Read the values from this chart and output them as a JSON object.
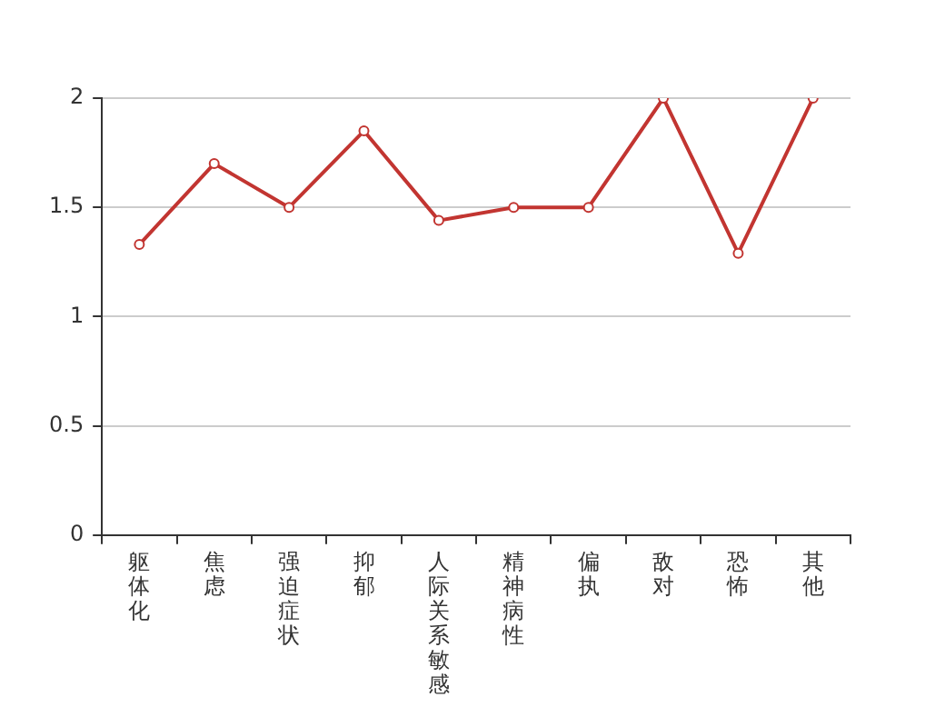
{
  "chart_data": {
    "type": "line",
    "categories": [
      "躯体化",
      "焦虑",
      "强迫症状",
      "抑郁",
      "人际关系敏感",
      "精神病性",
      "偏执",
      "敌对",
      "恐怖",
      "其他"
    ],
    "series": [
      {
        "color": "#c23531",
        "values": [
          1.33,
          1.7,
          1.5,
          1.85,
          1.44,
          1.5,
          1.5,
          2,
          1.29,
          2
        ]
      }
    ],
    "ylim": [
      0,
      2
    ],
    "yticks": [
      0,
      0.5,
      1,
      1.5,
      2
    ],
    "grid": "y",
    "marker": "circle"
  }
}
